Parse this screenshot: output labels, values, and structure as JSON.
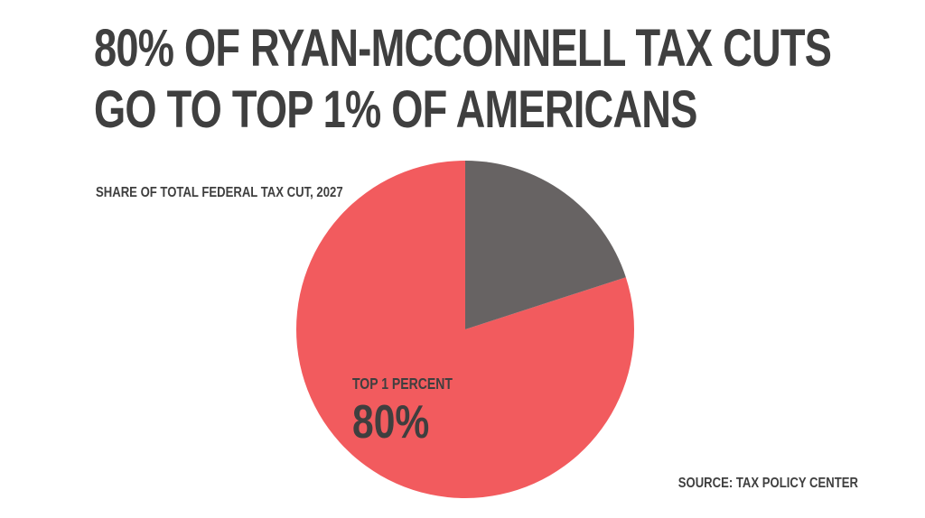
{
  "headline": {
    "line1": "80% OF RYAN-MCCONNELL TAX CUTS",
    "line2": "GO TO TOP 1% OF AMERICANS"
  },
  "source": "SOURCE: TAX POLICY CENTER",
  "chart_data": {
    "type": "pie",
    "title": "",
    "subtitle": "SHARE OF TOTAL FEDERAL TAX CUT, 2027",
    "slices": [
      {
        "label": "TOP 1 PERCENT",
        "value": 80,
        "value_label": "80%",
        "color": "#f25b5e"
      },
      {
        "label": "",
        "value": 20,
        "value_label": "",
        "color": "#676363"
      }
    ],
    "legend": "none"
  }
}
